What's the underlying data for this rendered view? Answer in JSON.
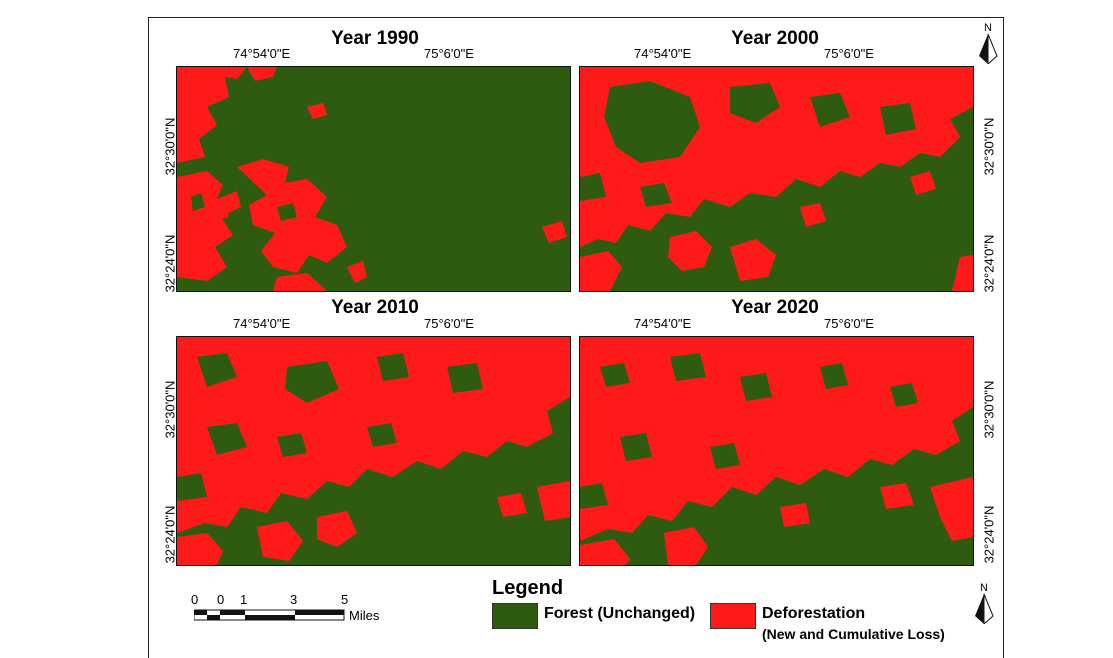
{
  "panels": [
    {
      "title": "Year 1990",
      "forest_share": 0.8
    },
    {
      "title": "Year 2000",
      "forest_share": 0.45
    },
    {
      "title": "Year 2010",
      "forest_share": 0.35
    },
    {
      "title": "Year 2020",
      "forest_share": 0.3
    }
  ],
  "coords": {
    "lon_west": "74°54'0\"E",
    "lon_east": "75°6'0\"E",
    "lat_north": "32°30'0\"N",
    "lat_south": "32°24'0\"N"
  },
  "legend": {
    "title": "Legend",
    "forest_label": "Forest (Unchanged)",
    "forest_color": "#2e5b10",
    "deforest_label": "Deforestation",
    "deforest_sub": "(New and Cumulative Loss)",
    "deforest_color": "#ff1a1a"
  },
  "scale": {
    "ticks": [
      "0",
      "0",
      "1",
      "3",
      "5"
    ],
    "unit": "Miles"
  },
  "north_label": "N"
}
